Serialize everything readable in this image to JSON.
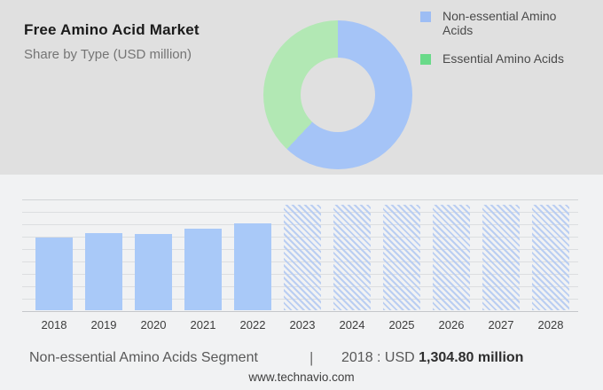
{
  "header": {
    "title": "Free Amino Acid Market",
    "subtitle": "Share by Type (USD million)"
  },
  "legend": {
    "items": [
      {
        "label": "Non-essential Amino Acids",
        "color": "#9dbdf4"
      },
      {
        "label": "Essential Amino Acids",
        "color": "#69da89"
      }
    ]
  },
  "footer": {
    "segment_label": "Non-essential Amino Acids Segment",
    "separator": "|",
    "value_prefix": "2018 : USD ",
    "value_bold": "1,304.80 million",
    "website": "www.technavio.com"
  },
  "colors": {
    "top_background": "#e0e0e0",
    "bottom_background": "#f1f2f3",
    "gridline": "#dcdee0",
    "axis_line": "#c5c7ca"
  },
  "chart_data": [
    {
      "type": "pie",
      "subtype": "donut",
      "title": "Share by Type (USD million)",
      "labels": [
        "Non-essential Amino Acids",
        "Essential Amino Acids"
      ],
      "values_percent": [
        62,
        38
      ],
      "colors": [
        "#a5c4f7",
        "#b2e8b4"
      ],
      "legend_position": "right"
    },
    {
      "type": "bar",
      "categories": [
        "2018",
        "2019",
        "2020",
        "2021",
        "2022",
        "2023",
        "2024",
        "2025",
        "2026",
        "2027",
        "2028"
      ],
      "values": [
        1304.8,
        1385,
        1370,
        1465,
        1560,
        null,
        null,
        null,
        null,
        null,
        null
      ],
      "value_2018_label": "USD 1,304.80 million",
      "forecast_categories": [
        "2023",
        "2024",
        "2025",
        "2026",
        "2027",
        "2028"
      ],
      "forecast_style": "hatched",
      "bar_color": "#a9c9f8",
      "hatch_color": "#bacef2",
      "xlabel": "",
      "ylabel": "",
      "ylim": [
        0,
        2000
      ],
      "grid": true,
      "gridline_count": 10
    }
  ]
}
